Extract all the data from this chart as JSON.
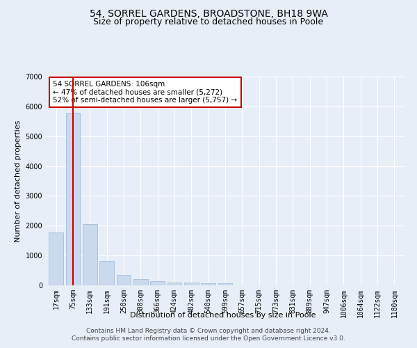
{
  "title": "54, SORREL GARDENS, BROADSTONE, BH18 9WA",
  "subtitle": "Size of property relative to detached houses in Poole",
  "xlabel": "Distribution of detached houses by size in Poole",
  "ylabel": "Number of detached properties",
  "categories": [
    "17sqm",
    "75sqm",
    "133sqm",
    "191sqm",
    "250sqm",
    "308sqm",
    "366sqm",
    "424sqm",
    "482sqm",
    "540sqm",
    "599sqm",
    "657sqm",
    "715sqm",
    "773sqm",
    "831sqm",
    "889sqm",
    "947sqm",
    "1006sqm",
    "1064sqm",
    "1122sqm",
    "1180sqm"
  ],
  "values": [
    1780,
    5780,
    2060,
    820,
    360,
    210,
    130,
    100,
    100,
    80,
    60,
    0,
    0,
    0,
    0,
    0,
    0,
    0,
    0,
    0,
    0
  ],
  "bar_color": "#c9d9ee",
  "bar_edge_color": "#9ab5d5",
  "vline_x": 1.0,
  "vline_color": "#cc0000",
  "annotation_text": "54 SORREL GARDENS: 106sqm\n← 47% of detached houses are smaller (5,272)\n52% of semi-detached houses are larger (5,757) →",
  "annotation_box_color": "#ffffff",
  "annotation_box_edge_color": "#cc0000",
  "ylim": [
    0,
    7000
  ],
  "yticks": [
    0,
    1000,
    2000,
    3000,
    4000,
    5000,
    6000,
    7000
  ],
  "footer1": "Contains HM Land Registry data © Crown copyright and database right 2024.",
  "footer2": "Contains public sector information licensed under the Open Government Licence v3.0.",
  "bg_color": "#e8eef8",
  "plot_bg_color": "#e8eef8",
  "grid_color": "#ffffff",
  "title_fontsize": 10,
  "subtitle_fontsize": 9,
  "axis_label_fontsize": 8,
  "tick_fontsize": 7,
  "annotation_fontsize": 7.5,
  "footer_fontsize": 6.5
}
